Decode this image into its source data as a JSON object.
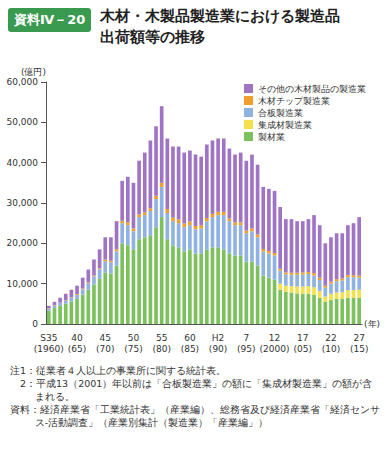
{
  "chart_data": {
    "type": "bar",
    "stacked": true,
    "figure_label": "資料Ⅳ－20",
    "title": "木材・木製品製造業における製造品\n出荷額等の推移",
    "xlabel": "(年)",
    "ylabel": "(億円)",
    "legend": "top-right",
    "grid": false,
    "ylim": [
      0,
      60000
    ],
    "yticks": [
      0,
      {
        "value": 10000,
        "label": "10,000"
      },
      {
        "value": 20000,
        "label": "20,000"
      },
      {
        "value": 30000,
        "label": "30,000"
      },
      {
        "value": 40000,
        "label": "40,000"
      },
      {
        "value": 50000,
        "label": "50,000"
      },
      {
        "value": 60000,
        "label": "60,000"
      }
    ],
    "categories": [
      "S35\n(1960)",
      null,
      null,
      null,
      null,
      "40\n(65)",
      null,
      null,
      null,
      null,
      "45\n(70)",
      null,
      null,
      null,
      null,
      "50\n(75)",
      null,
      null,
      null,
      null,
      "55\n(80)",
      null,
      null,
      null,
      null,
      "60\n(85)",
      null,
      null,
      null,
      null,
      "H2\n(90)",
      null,
      null,
      null,
      null,
      "7\n(95)",
      null,
      null,
      null,
      null,
      "12\n(2000)",
      null,
      null,
      null,
      null,
      "17\n(05)",
      null,
      null,
      null,
      null,
      "22\n(10)",
      null,
      null,
      null,
      null,
      "27\n(15)"
    ],
    "series": [
      {
        "name": "製材業",
        "color": "#7cc15e",
        "values": [
          3300,
          4000,
          4500,
          5000,
          5600,
          6200,
          7300,
          8500,
          9800,
          11200,
          12800,
          12500,
          14500,
          20000,
          19500,
          18500,
          21000,
          21500,
          22000,
          24000,
          26500,
          21000,
          19500,
          19000,
          18000,
          18500,
          17500,
          17500,
          18500,
          19000,
          19000,
          18500,
          17500,
          17000,
          17000,
          15500,
          15500,
          14500,
          12000,
          11500,
          11000,
          8500,
          8000,
          7800,
          7600,
          7500,
          7500,
          7200,
          6500,
          5500,
          6000,
          6200,
          6200,
          6500,
          6500,
          6500
        ]
      },
      {
        "name": "集成材製造業",
        "color": "#f3e04a",
        "values": [
          null,
          null,
          null,
          null,
          null,
          null,
          null,
          null,
          null,
          null,
          null,
          null,
          null,
          null,
          null,
          null,
          null,
          null,
          null,
          null,
          null,
          null,
          null,
          null,
          null,
          null,
          null,
          null,
          null,
          null,
          null,
          null,
          null,
          null,
          null,
          null,
          null,
          null,
          null,
          null,
          null,
          1500,
          1500,
          1600,
          1700,
          1800,
          1900,
          1900,
          1700,
          1300,
          1500,
          1600,
          1700,
          1900,
          1900,
          2000
        ]
      },
      {
        "name": "合板製造業",
        "color": "#8fb2e3",
        "values": [
          500,
          600,
          700,
          800,
          900,
          1000,
          1300,
          1600,
          2000,
          2400,
          2800,
          2800,
          3500,
          5000,
          5000,
          4500,
          5500,
          5500,
          6000,
          7000,
          7500,
          6500,
          6000,
          6000,
          6000,
          6000,
          6000,
          6200,
          7000,
          7500,
          8000,
          8500,
          8000,
          7500,
          7500,
          7000,
          7500,
          7000,
          6000,
          6000,
          6000,
          3200,
          2800,
          2800,
          2900,
          3000,
          3000,
          2900,
          2700,
          2200,
          2500,
          2800,
          2900,
          3200,
          3200,
          3000
        ]
      },
      {
        "name": "木材チップ製造業",
        "color": "#f0a02a",
        "values": [
          100,
          100,
          100,
          100,
          100,
          200,
          200,
          200,
          200,
          200,
          400,
          400,
          500,
          600,
          700,
          700,
          700,
          700,
          700,
          800,
          1000,
          1000,
          900,
          900,
          900,
          900,
          800,
          800,
          800,
          800,
          800,
          800,
          700,
          700,
          700,
          700,
          700,
          700,
          600,
          600,
          600,
          500,
          500,
          500,
          500,
          500,
          500,
          600,
          600,
          500,
          500,
          500,
          500,
          500,
          500,
          500
        ]
      },
      {
        "name": "その他の木材製品の製造業",
        "color": "#a074c4",
        "values": [
          600,
          800,
          1200,
          1600,
          1900,
          2100,
          2700,
          3200,
          4000,
          4700,
          5500,
          5800,
          7000,
          9900,
          11300,
          11300,
          13300,
          14800,
          16800,
          17200,
          19000,
          17500,
          17600,
          18100,
          17600,
          17600,
          17700,
          17000,
          18200,
          18200,
          18200,
          18200,
          17300,
          16800,
          17300,
          17300,
          18300,
          17300,
          15400,
          15400,
          15400,
          15300,
          13200,
          13300,
          12800,
          12700,
          13100,
          14400,
          13000,
          10500,
          11000,
          11400,
          11200,
          12400,
          12900,
          14500
        ]
      }
    ],
    "notes": [
      "注1：従業者４人以上の事業所に関する統計表。",
      "　2：平成13（2001）年以前は「合板製造業」の額に「集成材製造業」の額が含まれる。",
      "資料：経済産業省「工業統計表」（産業編）、総務省及び経済産業省「経済センサス-活動調査」（産業別集計（製造業）「産業編」）"
    ]
  }
}
